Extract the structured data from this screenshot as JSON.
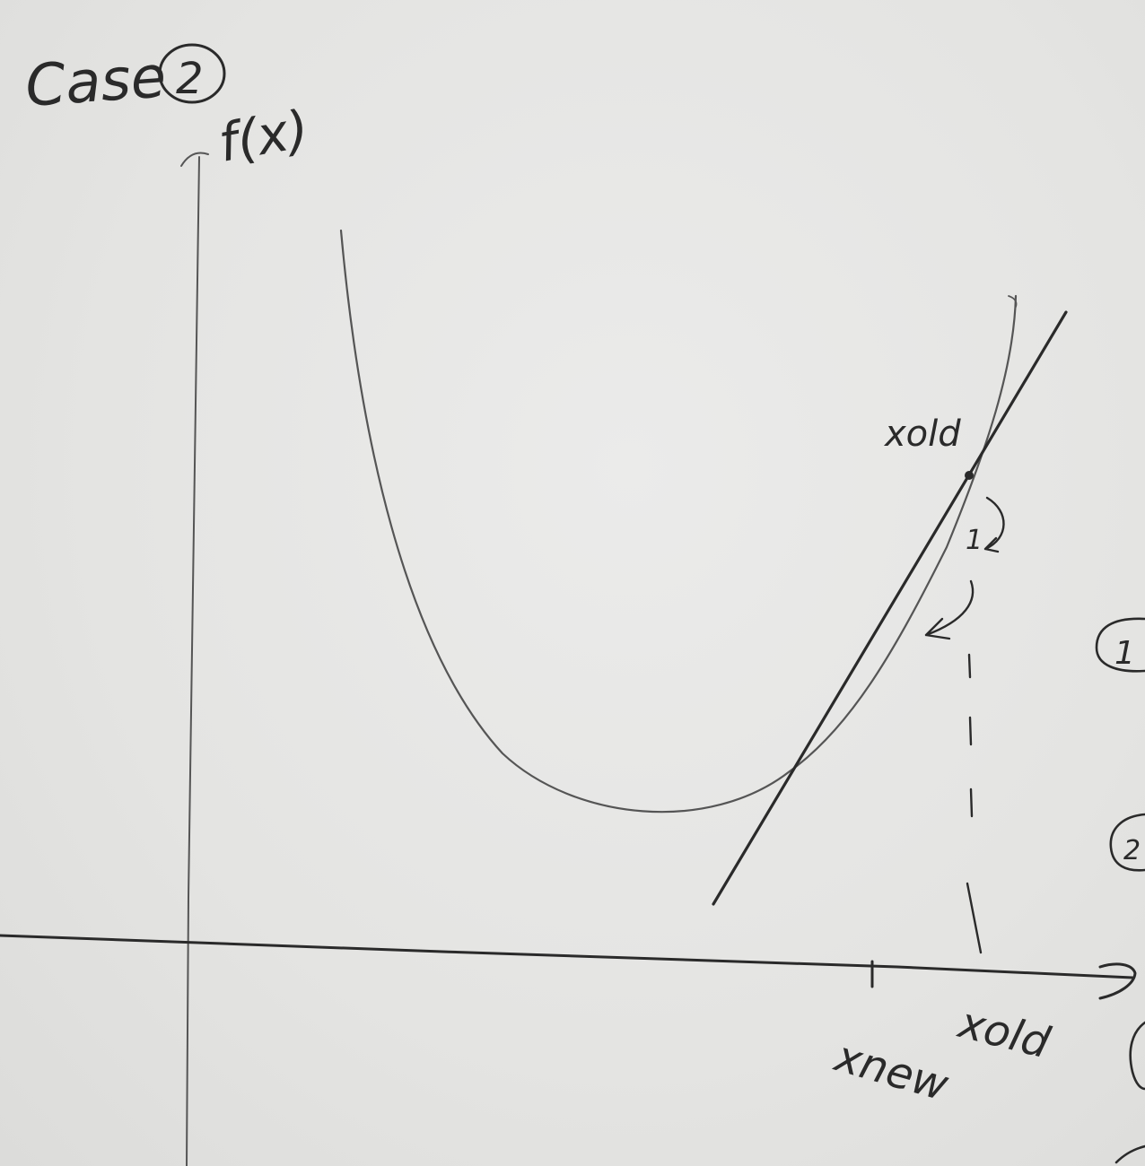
{
  "title": "Case",
  "case_number": "2",
  "axis_label": "f(x)",
  "labels": {
    "point_on_curve": "xold",
    "x_old": "xold",
    "x_new": "xnew"
  },
  "step_numbers": [
    "1",
    "2"
  ],
  "margin_marks": [
    "1",
    "2"
  ]
}
